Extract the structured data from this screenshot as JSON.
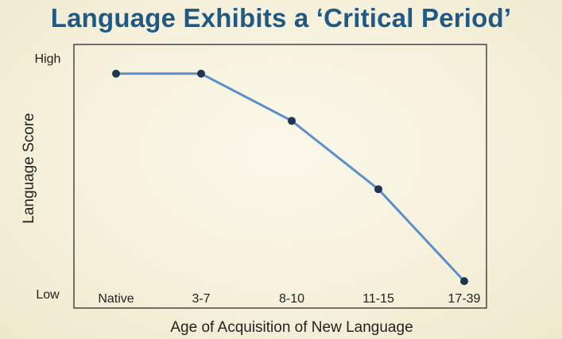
{
  "chart_data": {
    "type": "line",
    "title": "Language Exhibits a ‘Critical Period’",
    "xlabel": "Age of Acquisition of New Language",
    "ylabel": "Language Score",
    "categories": [
      "Native",
      "3-7",
      "8-10",
      "11-15",
      "17-39"
    ],
    "values": [
      0.93,
      0.93,
      0.73,
      0.44,
      0.05
    ],
    "y_tick_labels": [
      "Low",
      "High"
    ],
    "ylim": [
      0,
      1
    ],
    "grid": false,
    "colors": {
      "line": "#5b8fc9",
      "marker": "#1f3550",
      "title": "#1f5a86"
    }
  }
}
